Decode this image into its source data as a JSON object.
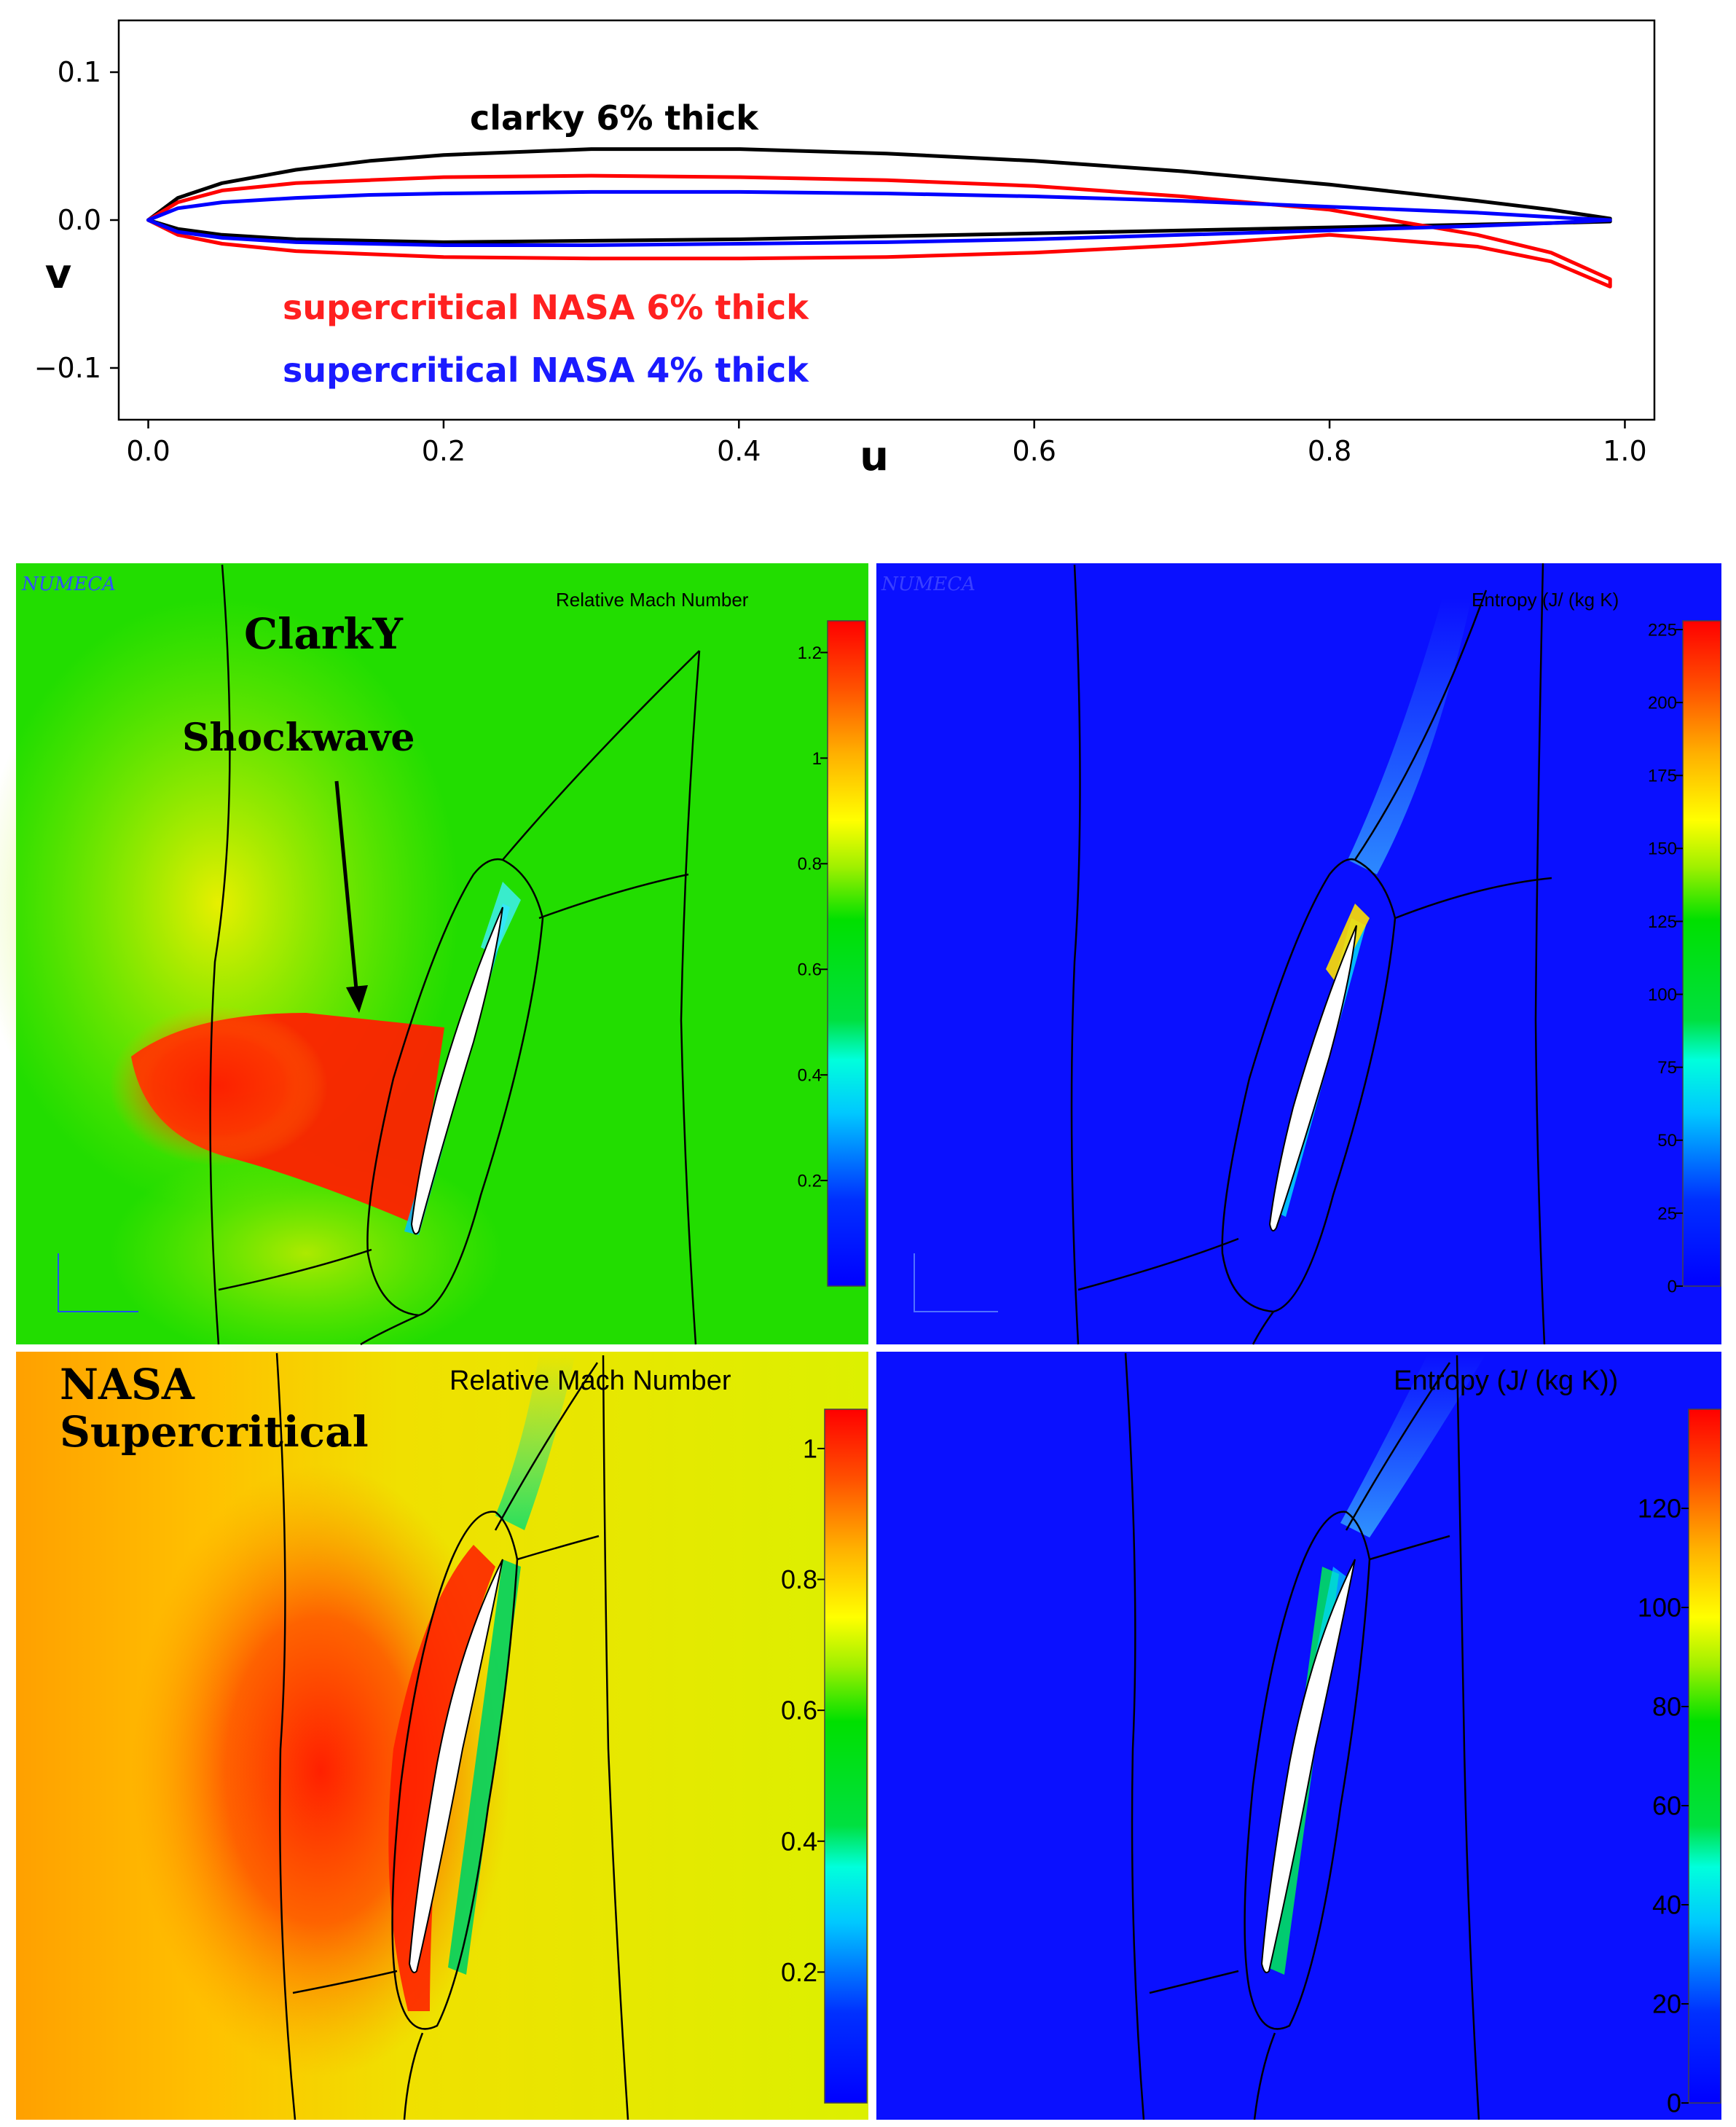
{
  "top_chart": {
    "type": "line",
    "xlabel": "u",
    "ylabel": "v",
    "xlim": [
      -0.02,
      1.02
    ],
    "ylim": [
      -0.135,
      0.135
    ],
    "x_ticks": [
      "0.0",
      "0.2",
      "0.4",
      "0.6",
      "0.8",
      "1.0"
    ],
    "x_tick_values": [
      0,
      0.2,
      0.4,
      0.6,
      0.8,
      1.0
    ],
    "y_ticks": [
      "0.1",
      "0.0",
      "−0.1"
    ],
    "y_tick_values": [
      0.1,
      0.0,
      -0.1
    ],
    "series": [
      {
        "name": "clarky 6% thick",
        "color": "#000000",
        "x": [
          0,
          0.02,
          0.05,
          0.1,
          0.15,
          0.2,
          0.3,
          0.4,
          0.5,
          0.6,
          0.7,
          0.8,
          0.9,
          0.95,
          0.99
        ],
        "upper": [
          0,
          0.015,
          0.025,
          0.034,
          0.04,
          0.044,
          0.048,
          0.048,
          0.045,
          0.04,
          0.033,
          0.024,
          0.013,
          0.007,
          0.001
        ],
        "lower": [
          0,
          -0.006,
          -0.01,
          -0.013,
          -0.014,
          -0.015,
          -0.014,
          -0.013,
          -0.011,
          -0.009,
          -0.007,
          -0.005,
          -0.003,
          -0.002,
          -0.001
        ]
      },
      {
        "name": "supercritical NASA 6% thick",
        "color": "#ff0000",
        "x": [
          0,
          0.02,
          0.05,
          0.1,
          0.15,
          0.2,
          0.3,
          0.4,
          0.5,
          0.6,
          0.7,
          0.8,
          0.9,
          0.95,
          0.99
        ],
        "upper": [
          0,
          0.012,
          0.02,
          0.025,
          0.027,
          0.029,
          0.03,
          0.029,
          0.027,
          0.023,
          0.016,
          0.007,
          -0.01,
          -0.022,
          -0.04
        ],
        "lower": [
          0,
          -0.01,
          -0.016,
          -0.021,
          -0.023,
          -0.025,
          -0.026,
          -0.026,
          -0.025,
          -0.022,
          -0.017,
          -0.01,
          -0.018,
          -0.028,
          -0.045
        ]
      },
      {
        "name": "supercritical NASA 4% thick",
        "color": "#0000ff",
        "x": [
          0,
          0.02,
          0.05,
          0.1,
          0.15,
          0.2,
          0.3,
          0.4,
          0.5,
          0.6,
          0.7,
          0.8,
          0.9,
          0.95,
          0.99
        ],
        "upper": [
          0,
          0.008,
          0.012,
          0.015,
          0.017,
          0.018,
          0.019,
          0.019,
          0.018,
          0.016,
          0.013,
          0.009,
          0.005,
          0.002,
          0.0
        ],
        "lower": [
          0,
          -0.008,
          -0.012,
          -0.015,
          -0.016,
          -0.017,
          -0.017,
          -0.016,
          -0.015,
          -0.013,
          -0.01,
          -0.007,
          -0.004,
          -0.002,
          0.0
        ]
      }
    ]
  },
  "panels": {
    "clark_mach": {
      "watermark": "NUMECA",
      "colorbar_title": "Relative Mach Number",
      "colorbar_ticks": [
        "1.2",
        "1",
        "0.8",
        "0.6",
        "0.4",
        "0.2"
      ],
      "colorbar_tick_values": [
        1.2,
        1.0,
        0.8,
        0.6,
        0.4,
        0.2
      ],
      "colorbar_range": [
        0,
        1.26
      ],
      "label": "ClarkY",
      "annotation": "Shockwave"
    },
    "clark_entropy": {
      "watermark": "NUMECA",
      "colorbar_title": "Entropy (J/ (kg K)",
      "colorbar_ticks": [
        "225",
        "200",
        "175",
        "150",
        "125",
        "100",
        "75",
        "50",
        "25",
        "0"
      ],
      "colorbar_tick_values": [
        225,
        200,
        175,
        150,
        125,
        100,
        75,
        50,
        25,
        0
      ],
      "colorbar_range": [
        0,
        228
      ]
    },
    "nasa_mach": {
      "colorbar_title": "Relative Mach Number",
      "colorbar_ticks": [
        "1",
        "0.8",
        "0.6",
        "0.4",
        "0.2"
      ],
      "colorbar_tick_values": [
        1.0,
        0.8,
        0.6,
        0.4,
        0.2
      ],
      "colorbar_range": [
        0,
        1.06
      ],
      "label_line1": "NASA",
      "label_line2": "Supercritical"
    },
    "nasa_entropy": {
      "colorbar_title": "Entropy (J/ (kg K))",
      "colorbar_ticks": [
        "120",
        "100",
        "80",
        "60",
        "40",
        "20",
        "0"
      ],
      "colorbar_tick_values": [
        120,
        100,
        80,
        60,
        40,
        20,
        0
      ],
      "colorbar_range": [
        0,
        140
      ]
    }
  },
  "colors": {
    "field_green": "#22dd00",
    "field_yellow": "#e0f000",
    "field_blue": "#0a10ff",
    "shock_red": "#ff1a00"
  }
}
